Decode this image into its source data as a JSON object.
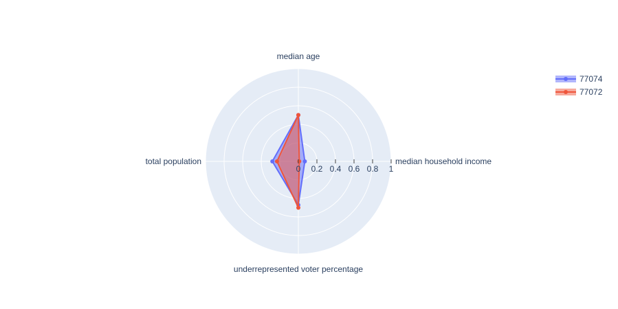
{
  "chart_data": {
    "type": "radar",
    "axes": [
      "median age",
      "median household income",
      "underrepresented voter percentage",
      "total population"
    ],
    "radial_range": [
      0,
      1
    ],
    "radial_ticks": [
      "0",
      "0.2",
      "0.4",
      "0.6",
      "0.8",
      "1"
    ],
    "radial_tick_values": [
      0,
      0.2,
      0.4,
      0.6,
      0.8,
      1
    ],
    "grid": true,
    "legend_position": "top-right",
    "series": [
      {
        "name": "77074",
        "color": "#636efa",
        "values": [
          0.5,
          0.07,
          0.47,
          0.28
        ]
      },
      {
        "name": "77072",
        "color": "#ef553b",
        "values": [
          0.5,
          0.01,
          0.5,
          0.23
        ]
      }
    ]
  }
}
